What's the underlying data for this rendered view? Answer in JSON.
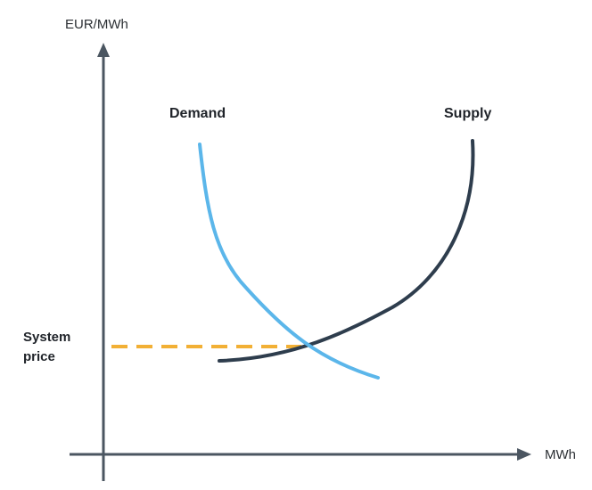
{
  "axes": {
    "y_label": "EUR/MWh",
    "x_label": "MWh"
  },
  "curves": {
    "demand_label": "Demand",
    "supply_label": "Supply"
  },
  "system_price": {
    "line1": "System",
    "line2": "price"
  },
  "colors": {
    "axis": "#4b5661",
    "demand": "#5bb6ea",
    "supply": "#2e3d4d",
    "price_line": "#f2b035",
    "text": "#1f2329"
  },
  "icons": {
    "y_arrow": "arrow-up-icon",
    "x_arrow": "arrow-right-icon"
  }
}
